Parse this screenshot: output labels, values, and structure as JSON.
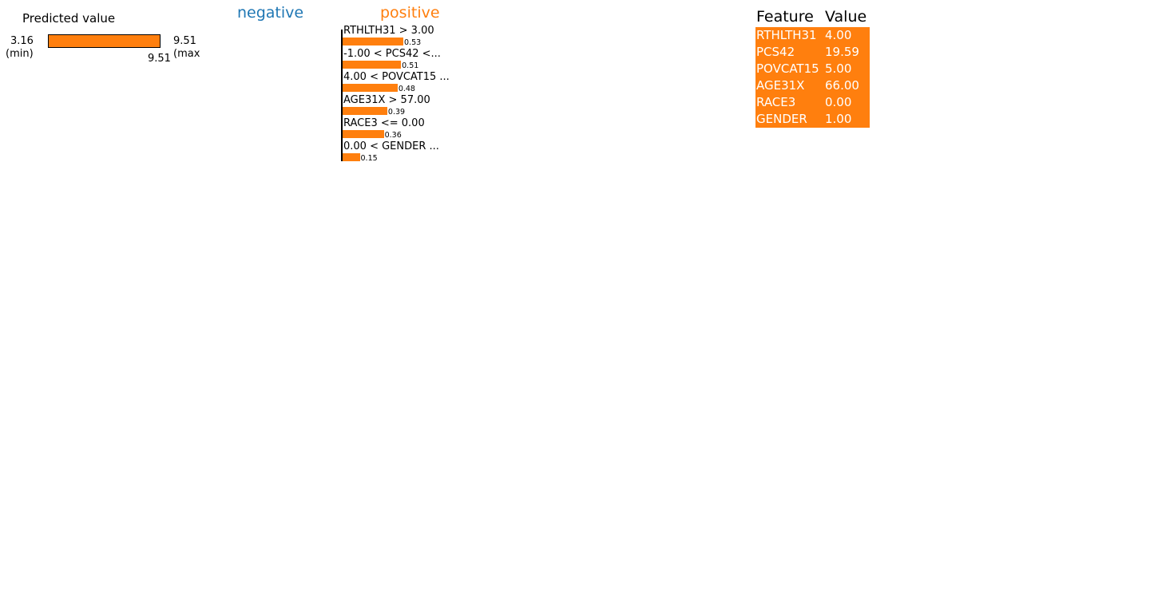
{
  "colors": {
    "negative": "#1f77b4",
    "positive": "#ff7f0e",
    "text": "#000000",
    "table_text": "#ffffff"
  },
  "predicted": {
    "title": "Predicted value",
    "min_value": "3.16",
    "min_label": "(min)",
    "max_value": "9.51",
    "max_label": "(max",
    "value_label": "9.51",
    "min": 3.16,
    "max": 9.51,
    "value": 9.51
  },
  "contrib": {
    "negative_label": "negative",
    "positive_label": "positive"
  },
  "table": {
    "header_feature": "Feature",
    "header_value": "Value",
    "rows": [
      {
        "feature": "RTHLTH31",
        "value": "4.00"
      },
      {
        "feature": "PCS42",
        "value": "19.59"
      },
      {
        "feature": "POVCAT15",
        "value": "5.00"
      },
      {
        "feature": "AGE31X",
        "value": "66.00"
      },
      {
        "feature": "RACE3",
        "value": "0.00"
      },
      {
        "feature": "GENDER",
        "value": "1.00"
      }
    ]
  },
  "chart_data": {
    "type": "bar",
    "orientation": "horizontal",
    "categories": [
      "RTHLTH31 > 3.00",
      "-1.00 < PCS42 <...",
      "4.00 < POVCAT15 ...",
      "AGE31X > 57.00",
      "RACE3 <= 0.00",
      "0.00 < GENDER ..."
    ],
    "values": [
      0.53,
      0.51,
      0.48,
      0.39,
      0.36,
      0.15
    ],
    "value_labels": [
      "0.53",
      "0.51",
      "0.48",
      "0.39",
      "0.36",
      "0.15"
    ],
    "xlim": [
      0,
      0.53
    ]
  }
}
